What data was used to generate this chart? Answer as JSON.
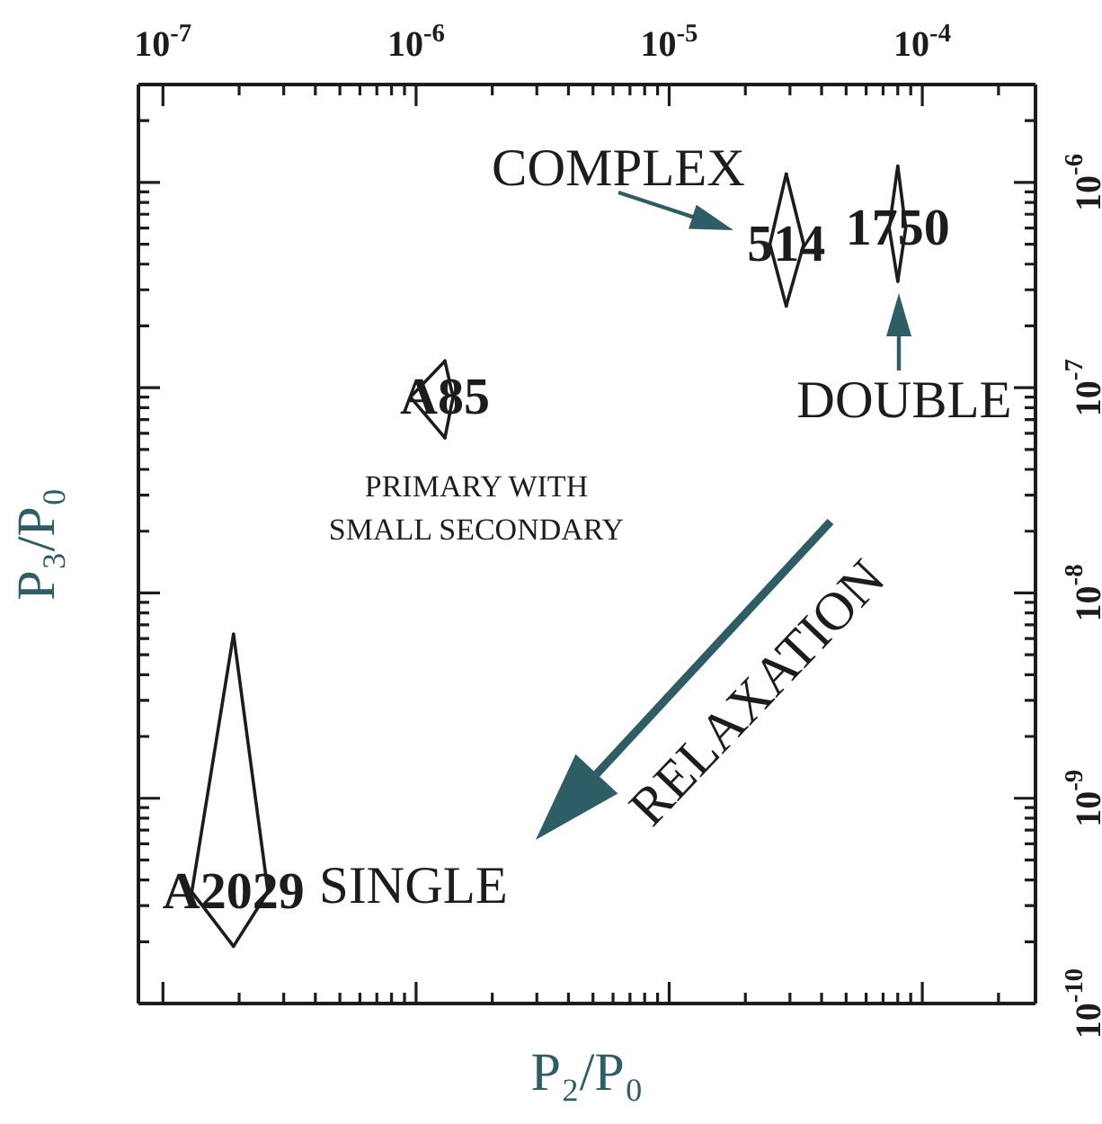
{
  "chart_data": {
    "type": "line",
    "xlabel": "P₂/P₀",
    "ylabel": "P₃/P₀",
    "log": "xy",
    "xlim": [
      8e-08,
      0.00028
    ],
    "ylim": [
      1e-10,
      3e-06
    ],
    "xticks": [
      {
        "value": 1e-07,
        "label": "10$^{-7}$"
      },
      {
        "value": 2e-07,
        "label": null
      },
      {
        "value": 3e-07,
        "label": null
      },
      {
        "value": 4e-07,
        "label": null
      },
      {
        "value": 5e-07,
        "label": null
      },
      {
        "value": 6e-07,
        "label": null
      },
      {
        "value": 7e-07,
        "label": null
      },
      {
        "value": 8e-07,
        "label": null
      },
      {
        "value": 9e-07,
        "label": null
      },
      {
        "value": 1e-06,
        "label": "10$^{-6}$"
      },
      {
        "value": 2e-06,
        "label": null
      },
      {
        "value": 3e-06,
        "label": null
      },
      {
        "value": 4e-06,
        "label": null
      },
      {
        "value": 5e-06,
        "label": null
      },
      {
        "value": 6e-06,
        "label": null
      },
      {
        "value": 7e-06,
        "label": null
      },
      {
        "value": 8e-06,
        "label": null
      },
      {
        "value": 9e-06,
        "label": null
      },
      {
        "value": 1e-05,
        "label": "10$^{-5}$"
      },
      {
        "value": 2e-05,
        "label": null
      },
      {
        "value": 3e-05,
        "label": null
      },
      {
        "value": 4e-05,
        "label": null
      },
      {
        "value": 5e-05,
        "label": null
      },
      {
        "value": 6e-05,
        "label": null
      },
      {
        "value": 7e-05,
        "label": null
      },
      {
        "value": 8e-05,
        "label": null
      },
      {
        "value": 9e-05,
        "label": null
      },
      {
        "value": 0.0001,
        "label": "10$^{-4}$"
      },
      {
        "value": 0.0002,
        "label": null
      }
    ],
    "yticks": [
      {
        "value": 1e-10,
        "label": "10$^{-10}$"
      },
      {
        "value": 2e-10,
        "label": null
      },
      {
        "value": 3e-10,
        "label": null
      },
      {
        "value": 4e-10,
        "label": null
      },
      {
        "value": 5e-10,
        "label": null
      },
      {
        "value": 6e-10,
        "label": null
      },
      {
        "value": 7e-10,
        "label": null
      },
      {
        "value": 8e-10,
        "label": null
      },
      {
        "value": 9e-10,
        "label": null
      },
      {
        "value": 1e-09,
        "label": "10$^{-9}$"
      },
      {
        "value": 2e-09,
        "label": null
      },
      {
        "value": 3e-09,
        "label": null
      },
      {
        "value": 4e-09,
        "label": null
      },
      {
        "value": 5e-09,
        "label": null
      },
      {
        "value": 6e-09,
        "label": null
      },
      {
        "value": 7e-09,
        "label": null
      },
      {
        "value": 8e-09,
        "label": null
      },
      {
        "value": 9e-09,
        "label": null
      },
      {
        "value": 1e-08,
        "label": "10$^{-8}$"
      },
      {
        "value": 2e-08,
        "label": null
      },
      {
        "value": 3e-08,
        "label": null
      },
      {
        "value": 4e-08,
        "label": null
      },
      {
        "value": 5e-08,
        "label": null
      },
      {
        "value": 6e-08,
        "label": null
      },
      {
        "value": 7e-08,
        "label": null
      },
      {
        "value": 8e-08,
        "label": null
      },
      {
        "value": 9e-08,
        "label": null
      },
      {
        "value": 1e-07,
        "label": "10$^{-7}$"
      },
      {
        "value": 2e-07,
        "label": null
      },
      {
        "value": 3e-07,
        "label": null
      },
      {
        "value": 4e-07,
        "label": null
      },
      {
        "value": 5e-07,
        "label": null
      },
      {
        "value": 6e-07,
        "label": null
      },
      {
        "value": 7e-07,
        "label": null
      },
      {
        "value": 8e-07,
        "label": null
      },
      {
        "value": 9e-07,
        "label": null
      },
      {
        "value": 1e-06,
        "label": "10$^{-6}$"
      },
      {
        "value": 2e-06,
        "label": null
      }
    ],
    "series": [
      {
        "name": "A2029",
        "color": "#1c1c1c",
        "x": [
          1.9e-07,
          1.3e-07,
          1.9e-07
        ],
        "values": [
          6.3e-09,
          3.5e-10,
          1.9e-10
        ]
      },
      {
        "color": "#1c1c1c",
        "x": [
          1.9e-07,
          2.6e-07,
          1.9e-07
        ],
        "values": [
          6.3e-09,
          3.5e-10,
          1.9e-10
        ]
      },
      {
        "name": "A85",
        "color": "#1c1c1c",
        "x": [
          1.3e-06,
          9.5e-07,
          1.3e-06
        ],
        "values": [
          1.35e-07,
          9e-08,
          5.7e-08
        ]
      },
      {
        "color": "#1c1c1c",
        "x": [
          1.3e-06,
          1.4e-06,
          1.3e-06
        ],
        "values": [
          1.35e-07,
          9e-08,
          5.7e-08
        ]
      },
      {
        "name": "514",
        "color": "#1c1c1c",
        "x": [
          2.9e-05,
          2.5e-05,
          2.9e-05
        ],
        "values": [
          1.1e-06,
          5e-07,
          2.5e-07
        ]
      },
      {
        "color": "#1c1c1c",
        "x": [
          2.9e-05,
          3.4e-05,
          2.9e-05
        ],
        "values": [
          1.1e-06,
          5e-07,
          2.5e-07
        ]
      },
      {
        "name": "1750",
        "color": "#1c1c1c",
        "x": [
          8e-05,
          7.4e-05,
          8e-05
        ],
        "values": [
          1.2e-06,
          6e-07,
          3.3e-07
        ]
      },
      {
        "color": "#1c1c1c",
        "x": [
          8e-05,
          8.6e-05,
          8e-05
        ],
        "values": [
          1.2e-06,
          6e-07,
          3.3e-07
        ]
      }
    ],
    "annotations": [
      "SINGLE",
      "PRIMARY WITH\nSMALL SECONDARY",
      "COMPLEX",
      "DOUBLE",
      "RELAXATION"
    ]
  }
}
